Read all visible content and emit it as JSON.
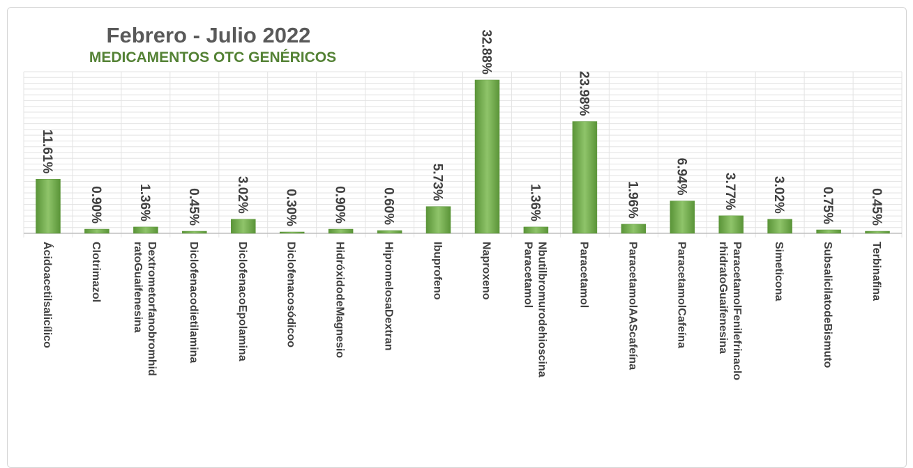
{
  "chart_data": {
    "type": "bar",
    "title": "Febrero - Julio 2022",
    "subtitle": "MEDICAMENTOS OTC GENÉRICOS",
    "categories": [
      [
        "Ácidoacetilsalicílico"
      ],
      [
        "Clotrimazol"
      ],
      [
        "Dextrometorfanobromhid",
        "ratoGuaifenesina"
      ],
      [
        "Diclofenacodietilamina"
      ],
      [
        "DiclofenacoEpolamina"
      ],
      [
        "Diclofenacosódicoo"
      ],
      [
        "HidróxidodeMagnesio"
      ],
      [
        "HipromelosaDextran"
      ],
      [
        "Ibuprofeno"
      ],
      [
        "Naproxeno"
      ],
      [
        "Nbutilbromurodehioscina",
        "Paracetamol"
      ],
      [
        "Paracetamol"
      ],
      [
        "ParacetamolAAScafeína"
      ],
      [
        "ParacetamolCafeína"
      ],
      [
        "ParacetamolFenilefrinaclo",
        "rhidratoGuaifenesina"
      ],
      [
        "Simeticona"
      ],
      [
        "SubsalicilatodeBismuto"
      ],
      [
        "Terbinafina"
      ]
    ],
    "values": [
      11.61,
      0.9,
      1.36,
      0.45,
      3.02,
      0.3,
      0.9,
      0.6,
      5.73,
      32.88,
      1.36,
      23.98,
      1.96,
      6.94,
      3.77,
      3.02,
      0.75,
      0.45
    ],
    "data_labels": [
      "11.61%",
      "0.90%",
      "1.36%",
      "0.45%",
      "3.02%",
      "0.30%",
      "0.90%",
      "0.60%",
      "5.73%",
      "32.88%",
      "1.36%",
      "23.98%",
      "1.96%",
      "6.94%",
      "3.77%",
      "3.02%",
      "0.75%",
      "0.45%"
    ],
    "unit": "%",
    "ylim": [
      0,
      35
    ],
    "grid": true,
    "legend": "none",
    "colors": {
      "bar": "#70ad47",
      "bar_light": "#8fc46a",
      "bar_dark": "#5a9438",
      "title": "#595959",
      "subtitle": "#548235",
      "grid": "#e3e3e3",
      "axis": "#bfbfbf",
      "text": "#404040"
    }
  }
}
